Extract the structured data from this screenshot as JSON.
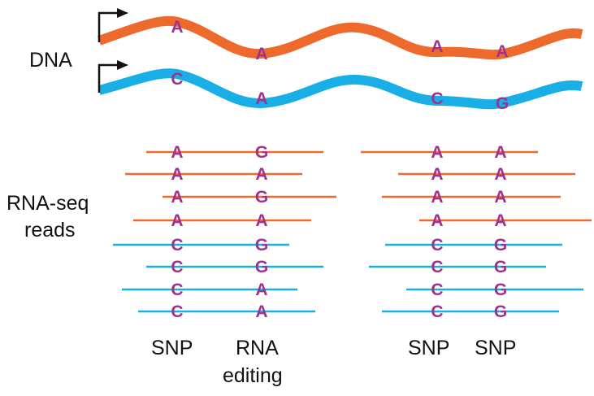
{
  "labels": {
    "dna": "DNA",
    "rnaseq_line1": "RNA-seq",
    "rnaseq_line2": "reads",
    "snp1": "SNP",
    "rna_editing_line1": "RNA",
    "rna_editing_line2": "editing",
    "snp2": "SNP",
    "snp3": "SNP"
  },
  "colors": {
    "orange": "#ee6a2c",
    "blue": "#19aee6",
    "base": "#a0328e",
    "arrow": "#111111"
  },
  "alleles": {
    "orange_strand": [
      "A",
      "A",
      "A",
      "A"
    ],
    "blue_strand": [
      "C",
      "A",
      "C",
      "G"
    ]
  },
  "reads": {
    "left_group": {
      "orange": [
        [
          "A",
          "G"
        ],
        [
          "A",
          "A"
        ],
        [
          "A",
          "G"
        ],
        [
          "A",
          "A"
        ]
      ],
      "blue": [
        [
          "C",
          "G"
        ],
        [
          "C",
          "G"
        ],
        [
          "C",
          "A"
        ],
        [
          "C",
          "A"
        ]
      ]
    },
    "right_group": {
      "orange": [
        [
          "A",
          "A"
        ],
        [
          "A",
          "A"
        ],
        [
          "A",
          "A"
        ],
        [
          "A",
          "A"
        ]
      ],
      "blue": [
        [
          "C",
          "G"
        ],
        [
          "C",
          "G"
        ],
        [
          "C",
          "G"
        ],
        [
          "C",
          "G"
        ]
      ]
    }
  }
}
